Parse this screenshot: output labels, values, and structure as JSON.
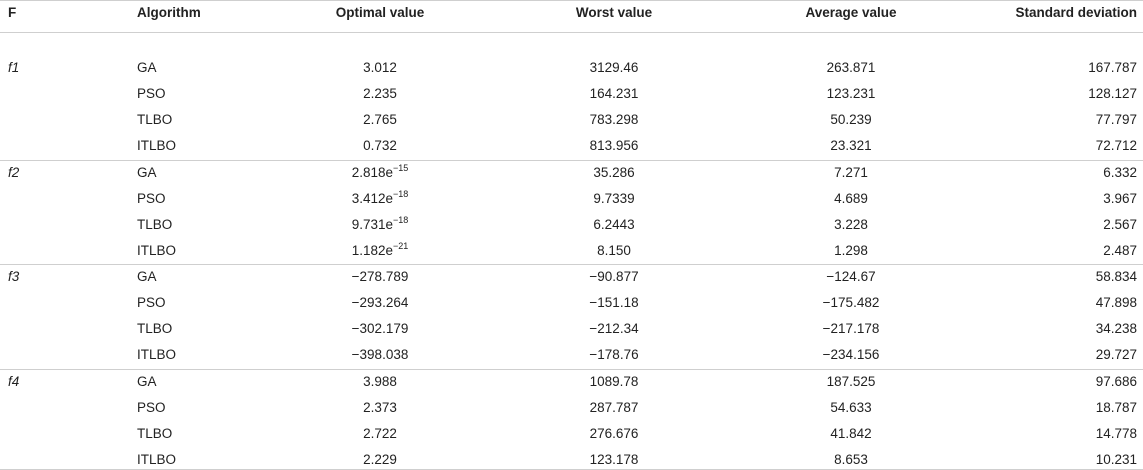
{
  "table": {
    "header": [
      "F",
      "Algorithm",
      "Optimal value",
      "Worst value",
      "Average value",
      "Standard deviation"
    ],
    "groups": [
      {
        "f": "f1",
        "rows": [
          [
            "GA",
            "3.012",
            "3129.46",
            "263.871",
            "167.787"
          ],
          [
            "PSO",
            "2.235",
            "164.231",
            "123.231",
            "128.127"
          ],
          [
            "TLBO",
            "2.765",
            "783.298",
            "50.239",
            "77.797"
          ],
          [
            "ITLBO",
            "0.732",
            "813.956",
            "23.321",
            "72.712"
          ]
        ]
      },
      {
        "f": "f2",
        "rows": [
          [
            "GA",
            {
              "base": "2.818e",
              "sup": "−15"
            },
            "35.286",
            "7.271",
            "6.332"
          ],
          [
            "PSO",
            {
              "base": "3.412e",
              "sup": "−18"
            },
            "9.7339",
            "4.689",
            "3.967"
          ],
          [
            "TLBO",
            {
              "base": "9.731e",
              "sup": "−18"
            },
            "6.2443",
            "3.228",
            "2.567"
          ],
          [
            "ITLBO",
            {
              "base": "1.182e",
              "sup": "−21"
            },
            "8.150",
            "1.298",
            "2.487"
          ]
        ]
      },
      {
        "f": "f3",
        "rows": [
          [
            "GA",
            "−278.789",
            "−90.877",
            "−124.67",
            "58.834"
          ],
          [
            "PSO",
            "−293.264",
            "−151.18",
            "−175.482",
            "47.898"
          ],
          [
            "TLBO",
            "−302.179",
            "−212.34",
            "−217.178",
            "34.238"
          ],
          [
            "ITLBO",
            "−398.038",
            "−178.76",
            "−234.156",
            "29.727"
          ]
        ]
      },
      {
        "f": "f4",
        "rows": [
          [
            "GA",
            "3.988",
            "1089.78",
            "187.525",
            "97.686"
          ],
          [
            "PSO",
            "2.373",
            "287.787",
            "54.633",
            "18.787"
          ],
          [
            "TLBO",
            "2.722",
            "276.676",
            "41.842",
            "14.778"
          ],
          [
            "ITLBO",
            "2.229",
            "123.178",
            "8.653",
            "10.231"
          ]
        ]
      }
    ]
  }
}
